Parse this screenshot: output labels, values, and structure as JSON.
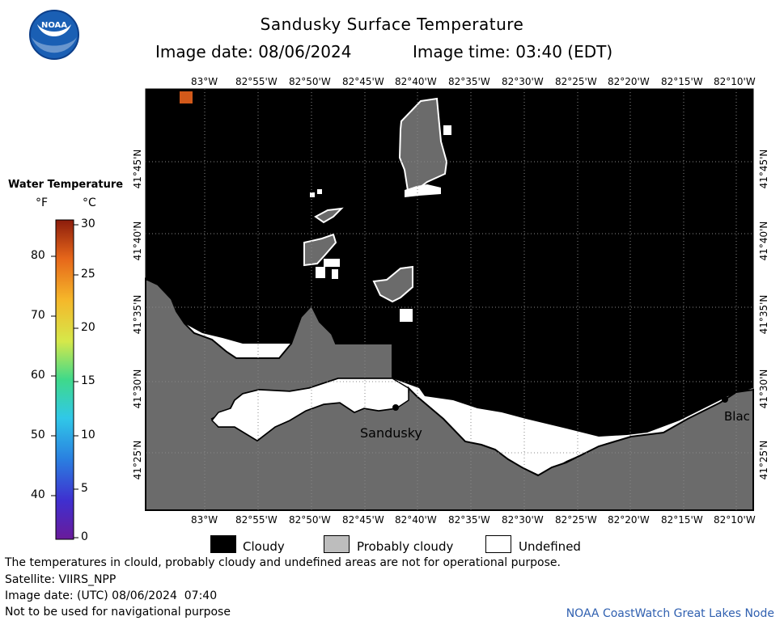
{
  "title": "Sandusky Surface Temperature",
  "image_date_label": "Image date: 08/06/2024",
  "image_time_label": "Image time: 03:40 (EDT)",
  "logo_text": "NOAA",
  "legend": {
    "title": "Water Temperature",
    "unit_f": "°F",
    "unit_c": "°C",
    "f_ticks": [
      "80",
      "70",
      "60",
      "50",
      "40"
    ],
    "c_ticks": [
      "30",
      "25",
      "20",
      "15",
      "10",
      "5",
      "0"
    ]
  },
  "longitude_labels": [
    "83°W",
    "82°55'W",
    "82°50'W",
    "82°45'W",
    "82°40'W",
    "82°35'W",
    "82°30'W",
    "82°25'W",
    "82°20'W",
    "82°15'W",
    "82°10'W"
  ],
  "latitude_labels": [
    "41°45'N",
    "41°40'N",
    "41°35'N",
    "41°30'N",
    "41°25'N"
  ],
  "places": {
    "sandusky": "Sandusky",
    "blac": "Blac"
  },
  "key": {
    "cloudy": "Cloudy",
    "probably_cloudy": "Probably cloudy",
    "undefined": "Undefined"
  },
  "footer": {
    "disclaimer": "The temperatures in clould, probably cloudy and undefined areas are not for operational purpose.",
    "satellite": "Satellite: VIIRS_NPP",
    "utc_date": "Image date: (UTC) 08/06/2024  07:40",
    "nav_warning": "Not to be used for navigational purpose",
    "credit": "NOAA CoastWatch Great Lakes Node"
  },
  "colors": {
    "cloudy": "#000000",
    "probably_cloudy": "#6b6b6b",
    "undefined": "#ffffff",
    "land": "#6b6b6b",
    "credit": "#3060b0",
    "warm_pixel": "#d2591a"
  }
}
